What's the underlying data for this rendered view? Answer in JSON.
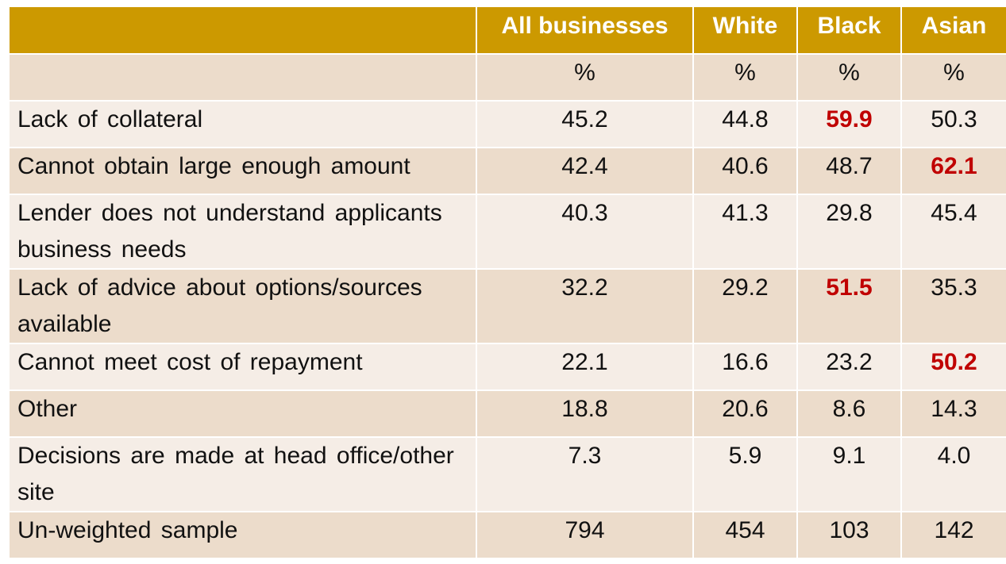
{
  "chart_data": {
    "type": "table",
    "columns": [
      "",
      "All businesses",
      "White",
      "Black",
      "Asian"
    ],
    "unit_row": [
      "",
      "%",
      "%",
      "%",
      "%"
    ],
    "rows": [
      {
        "label": "Lack of collateral",
        "values": [
          "45.2",
          "44.8",
          "59.9",
          "50.3"
        ],
        "highlight": [
          false,
          false,
          true,
          false
        ]
      },
      {
        "label": "Cannot obtain large enough amount",
        "values": [
          "42.4",
          "40.6",
          "48.7",
          "62.1"
        ],
        "highlight": [
          false,
          false,
          false,
          true
        ]
      },
      {
        "label": "Lender does not understand applicants business needs",
        "values": [
          "40.3",
          "41.3",
          "29.8",
          "45.4"
        ],
        "highlight": [
          false,
          false,
          false,
          false
        ]
      },
      {
        "label": "Lack of advice about options/sources available",
        "values": [
          "32.2",
          "29.2",
          "51.5",
          "35.3"
        ],
        "highlight": [
          false,
          false,
          true,
          false
        ]
      },
      {
        "label": "Cannot meet cost of repayment",
        "values": [
          "22.1",
          "16.6",
          "23.2",
          "50.2"
        ],
        "highlight": [
          false,
          false,
          false,
          true
        ]
      },
      {
        "label": "Other",
        "values": [
          "18.8",
          "20.6",
          "8.6",
          "14.3"
        ],
        "highlight": [
          false,
          false,
          false,
          false
        ]
      },
      {
        "label": "Decisions are made at head office/other site",
        "values": [
          "7.3",
          "5.9",
          "9.1",
          "4.0"
        ],
        "highlight": [
          false,
          false,
          false,
          false
        ]
      },
      {
        "label": "Un-weighted sample",
        "values": [
          "794",
          "454",
          "103",
          "142"
        ],
        "highlight": [
          false,
          false,
          false,
          false
        ]
      }
    ],
    "colors": {
      "header_bg": "#cc9900",
      "header_text": "#ffffff",
      "row_band_a": "#ecdccb",
      "row_band_b": "#f5ede6",
      "highlight_text": "#c00000"
    }
  }
}
